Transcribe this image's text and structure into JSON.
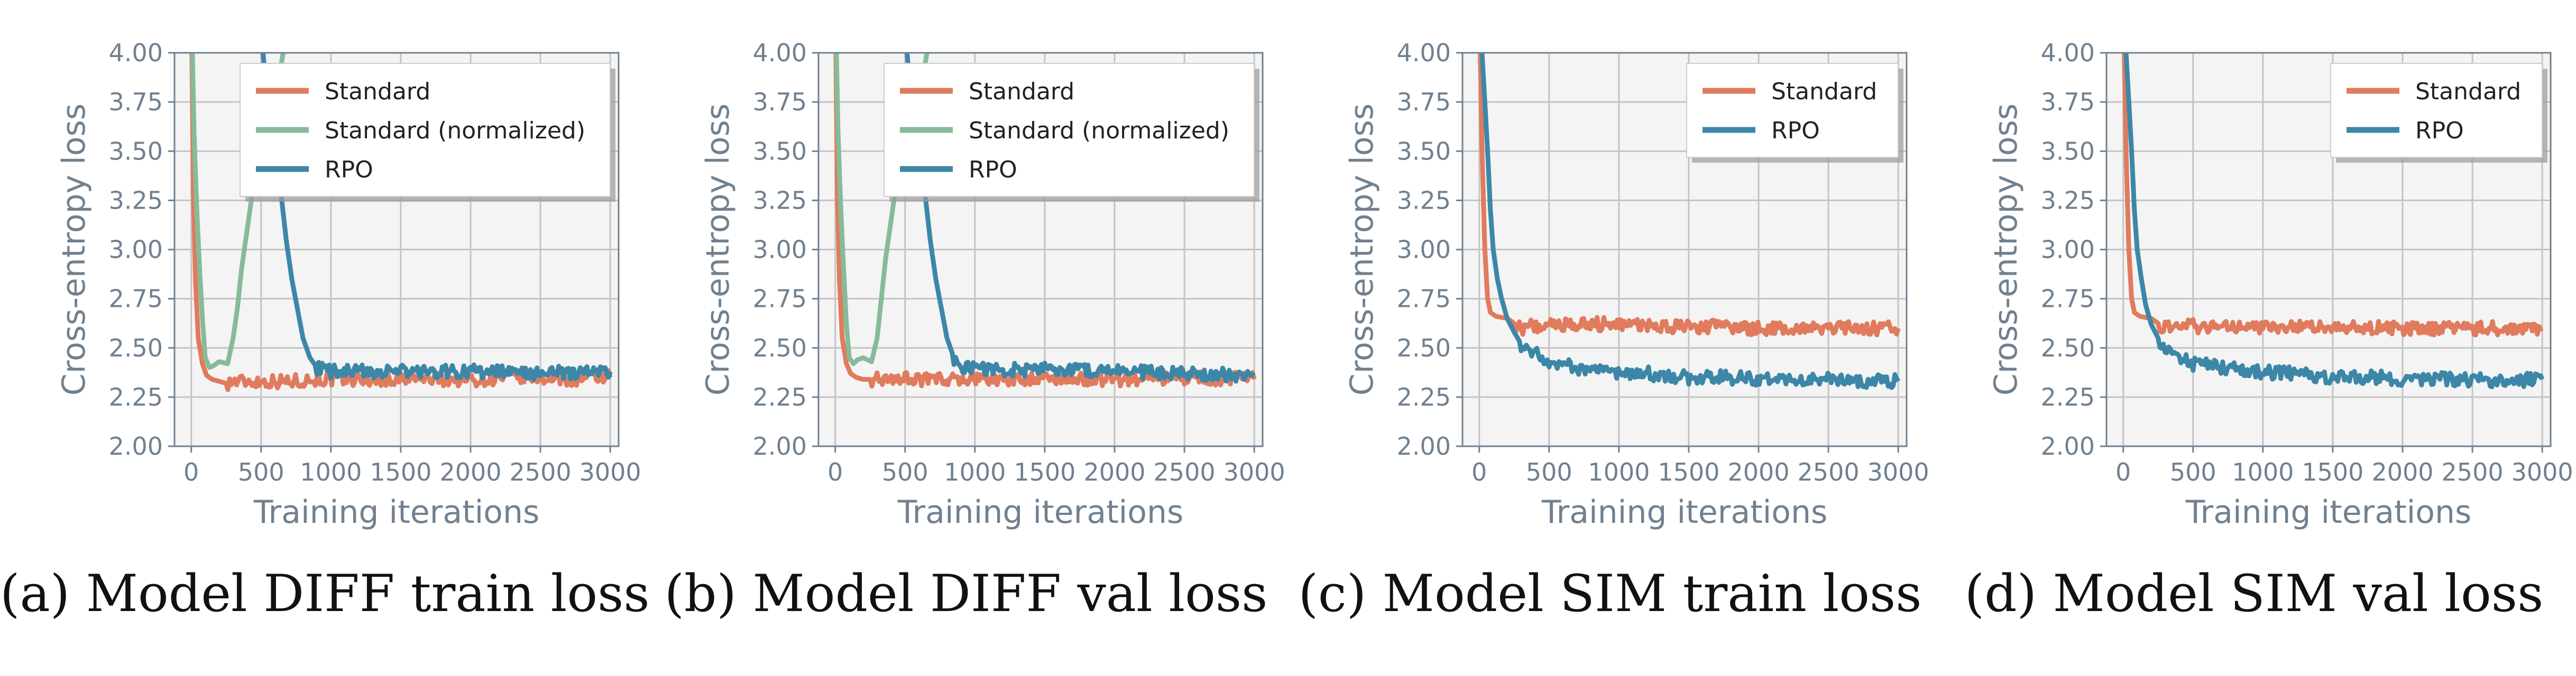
{
  "chart_data": [
    {
      "type": "line",
      "id": "a",
      "caption": {
        "label": "(a)",
        "model": "DIFF",
        "suffix": "train loss"
      },
      "xlabel": "Training iterations",
      "ylabel": "Cross-entropy loss",
      "xlim": [
        -120,
        3060
      ],
      "ylim": [
        2.0,
        4.0
      ],
      "xticks": [
        0,
        500,
        1000,
        1500,
        2000,
        2500,
        3000
      ],
      "yticks": [
        2.0,
        2.25,
        2.5,
        2.75,
        3.0,
        3.25,
        3.5,
        3.75,
        4.0
      ],
      "grid": true,
      "legend_position": "top-right",
      "series": [
        {
          "name": "Standard",
          "color": "#e07b5e",
          "x": [
            0,
            15,
            30,
            50,
            80,
            110,
            150,
            200,
            250,
            300,
            400,
            500,
            700,
            900,
            1100,
            1300,
            1500,
            1700,
            1900,
            2100,
            2300,
            2500,
            2700,
            2900,
            3000
          ],
          "y": [
            4.3,
            3.3,
            2.85,
            2.55,
            2.42,
            2.36,
            2.34,
            2.33,
            2.32,
            2.33,
            2.33,
            2.33,
            2.33,
            2.34,
            2.34,
            2.34,
            2.34,
            2.34,
            2.34,
            2.34,
            2.35,
            2.35,
            2.34,
            2.35,
            2.35
          ]
        },
        {
          "name": "Standard (normalized)",
          "color": "#86bb99",
          "x": [
            0,
            20,
            40,
            60,
            80,
            100,
            130,
            160,
            200,
            260,
            300,
            330,
            360,
            400,
            440,
            480,
            520,
            560,
            600,
            640,
            680
          ],
          "y": [
            4.3,
            3.6,
            3.2,
            2.9,
            2.65,
            2.45,
            2.4,
            2.41,
            2.43,
            2.42,
            2.55,
            2.7,
            2.9,
            3.1,
            3.3,
            3.5,
            3.62,
            3.72,
            3.8,
            3.92,
            4.1
          ]
        },
        {
          "name": "RPO",
          "color": "#3c87a8",
          "x": [
            480,
            520,
            560,
            600,
            640,
            680,
            720,
            760,
            800,
            850,
            900,
            1000,
            1200,
            1500,
            2000,
            2500,
            3000
          ],
          "y": [
            4.3,
            3.95,
            3.75,
            3.55,
            3.3,
            3.05,
            2.85,
            2.7,
            2.55,
            2.45,
            2.4,
            2.38,
            2.38,
            2.38,
            2.38,
            2.37,
            2.38
          ]
        }
      ]
    },
    {
      "type": "line",
      "id": "b",
      "caption": {
        "label": "(b)",
        "model": "DIFF",
        "suffix": "val loss"
      },
      "xlabel": "Training iterations",
      "ylabel": "Cross-entropy loss",
      "xlim": [
        -120,
        3060
      ],
      "ylim": [
        2.0,
        4.0
      ],
      "xticks": [
        0,
        500,
        1000,
        1500,
        2000,
        2500,
        3000
      ],
      "yticks": [
        2.0,
        2.25,
        2.5,
        2.75,
        3.0,
        3.25,
        3.5,
        3.75,
        4.0
      ],
      "grid": true,
      "legend_position": "top-right",
      "series": [
        {
          "name": "Standard",
          "color": "#e07b5e",
          "x": [
            0,
            15,
            30,
            50,
            80,
            110,
            150,
            200,
            250,
            300,
            400,
            500,
            700,
            900,
            1100,
            1300,
            1500,
            1700,
            1900,
            2100,
            2300,
            2500,
            2700,
            2900,
            3000
          ],
          "y": [
            4.3,
            3.3,
            2.85,
            2.55,
            2.42,
            2.37,
            2.35,
            2.34,
            2.34,
            2.34,
            2.34,
            2.34,
            2.34,
            2.34,
            2.34,
            2.34,
            2.34,
            2.34,
            2.34,
            2.34,
            2.34,
            2.35,
            2.34,
            2.35,
            2.34
          ]
        },
        {
          "name": "Standard (normalized)",
          "color": "#86bb99",
          "x": [
            0,
            20,
            40,
            60,
            80,
            100,
            130,
            160,
            200,
            260,
            300,
            330,
            360,
            400,
            440,
            480,
            520,
            560,
            600,
            640,
            680
          ],
          "y": [
            4.3,
            3.6,
            3.2,
            2.9,
            2.62,
            2.45,
            2.42,
            2.44,
            2.45,
            2.43,
            2.55,
            2.75,
            2.95,
            3.15,
            3.35,
            3.5,
            3.6,
            3.72,
            3.82,
            3.93,
            4.1
          ]
        },
        {
          "name": "RPO",
          "color": "#3c87a8",
          "x": [
            480,
            520,
            560,
            600,
            640,
            680,
            720,
            760,
            800,
            850,
            900,
            1000,
            1200,
            1500,
            2000,
            2500,
            3000
          ],
          "y": [
            4.3,
            3.95,
            3.75,
            3.55,
            3.3,
            3.05,
            2.85,
            2.7,
            2.55,
            2.45,
            2.41,
            2.39,
            2.39,
            2.39,
            2.38,
            2.37,
            2.36
          ]
        }
      ]
    },
    {
      "type": "line",
      "id": "c",
      "caption": {
        "label": "(c)",
        "model": "SIM",
        "suffix": "train loss"
      },
      "xlabel": "Training iterations",
      "ylabel": "Cross-entropy loss",
      "xlim": [
        -120,
        3060
      ],
      "ylim": [
        2.0,
        4.0
      ],
      "xticks": [
        0,
        500,
        1000,
        1500,
        2000,
        2500,
        3000
      ],
      "yticks": [
        2.0,
        2.25,
        2.5,
        2.75,
        3.0,
        3.25,
        3.5,
        3.75,
        4.0
      ],
      "grid": true,
      "legend_position": "top-right",
      "series": [
        {
          "name": "Standard",
          "color": "#e07b5e",
          "x": [
            0,
            20,
            40,
            60,
            80,
            120,
            200,
            300,
            500,
            700,
            1000,
            1300,
            1600,
            1900,
            2200,
            2500,
            2800,
            3000
          ],
          "y": [
            4.3,
            3.5,
            3.0,
            2.75,
            2.68,
            2.66,
            2.65,
            2.6,
            2.62,
            2.62,
            2.62,
            2.61,
            2.61,
            2.6,
            2.6,
            2.6,
            2.6,
            2.6
          ]
        },
        {
          "name": "RPO",
          "color": "#3c87a8",
          "x": [
            0,
            20,
            40,
            60,
            80,
            100,
            130,
            160,
            200,
            250,
            300,
            400,
            500,
            700,
            900,
            1200,
            1500,
            1800,
            2100,
            2400,
            2700,
            3000
          ],
          "y": [
            4.3,
            4.0,
            3.75,
            3.5,
            3.2,
            3.0,
            2.85,
            2.75,
            2.65,
            2.58,
            2.52,
            2.47,
            2.43,
            2.4,
            2.38,
            2.37,
            2.35,
            2.35,
            2.34,
            2.34,
            2.33,
            2.33
          ]
        }
      ]
    },
    {
      "type": "line",
      "id": "d",
      "caption": {
        "label": "(d)",
        "model": "SIM",
        "suffix": "val loss"
      },
      "xlabel": "Training iterations",
      "ylabel": "Cross-entropy loss",
      "xlim": [
        -120,
        3060
      ],
      "ylim": [
        2.0,
        4.0
      ],
      "xticks": [
        0,
        500,
        1000,
        1500,
        2000,
        2500,
        3000
      ],
      "yticks": [
        2.0,
        2.25,
        2.5,
        2.75,
        3.0,
        3.25,
        3.5,
        3.75,
        4.0
      ],
      "grid": true,
      "legend_position": "top-right",
      "series": [
        {
          "name": "Standard",
          "color": "#e07b5e",
          "x": [
            0,
            20,
            40,
            60,
            80,
            120,
            200,
            300,
            500,
            700,
            1000,
            1300,
            1600,
            1900,
            2200,
            2500,
            2800,
            3000
          ],
          "y": [
            4.3,
            3.5,
            3.0,
            2.75,
            2.68,
            2.66,
            2.65,
            2.6,
            2.61,
            2.61,
            2.61,
            2.61,
            2.6,
            2.6,
            2.6,
            2.6,
            2.6,
            2.6
          ]
        },
        {
          "name": "RPO",
          "color": "#3c87a8",
          "x": [
            0,
            20,
            40,
            60,
            80,
            100,
            130,
            160,
            200,
            250,
            300,
            400,
            500,
            700,
            900,
            1200,
            1500,
            1800,
            2100,
            2400,
            2700,
            3000
          ],
          "y": [
            4.3,
            4.0,
            3.75,
            3.5,
            3.2,
            3.0,
            2.85,
            2.72,
            2.62,
            2.55,
            2.5,
            2.45,
            2.42,
            2.4,
            2.38,
            2.37,
            2.35,
            2.35,
            2.34,
            2.34,
            2.33,
            2.34
          ]
        }
      ]
    }
  ]
}
